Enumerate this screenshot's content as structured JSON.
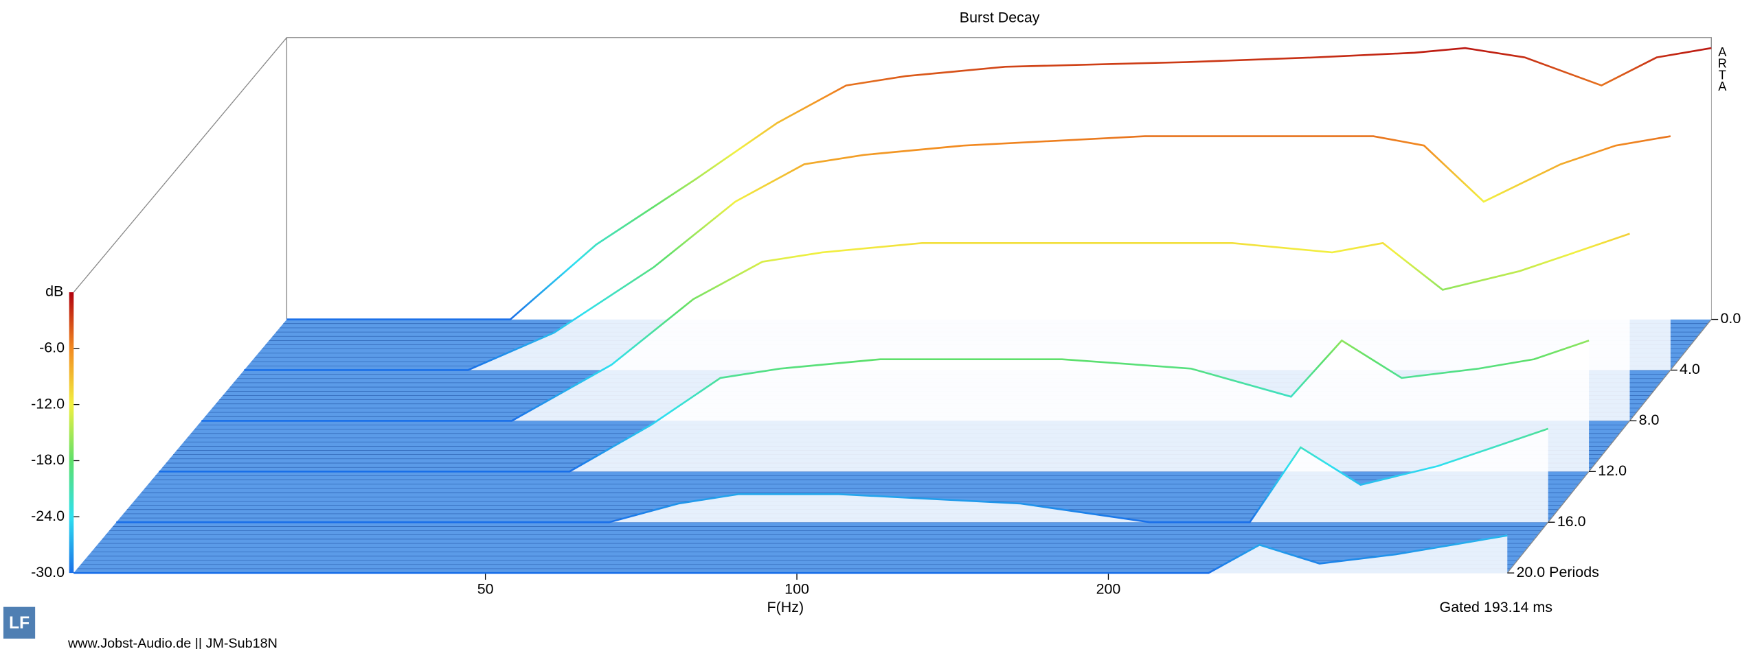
{
  "chart_data": {
    "type": "waterfall",
    "title": "Burst Decay",
    "ylabel": "dB",
    "ylim": [
      -30,
      0
    ],
    "yticks": [
      {
        "value": -30,
        "label": "-30.0"
      },
      {
        "value": -24,
        "label": "-24.0"
      },
      {
        "value": -18,
        "label": "-18.0"
      },
      {
        "value": -12,
        "label": "-12.0"
      },
      {
        "value": -6,
        "label": "-6.0"
      }
    ],
    "xlabel": "F(Hz)",
    "xscale": "log",
    "xlim": [
      20,
      486
    ],
    "xticks": [
      50,
      100,
      200
    ],
    "zlim": [
      0,
      20
    ],
    "zticks": [
      {
        "value": 0,
        "label": "0.0"
      },
      {
        "value": 4,
        "label": "4.0"
      },
      {
        "value": 8,
        "label": "8.0"
      },
      {
        "value": 12,
        "label": "12.0"
      },
      {
        "value": 16,
        "label": "16.0"
      },
      {
        "value": 20,
        "label": "20.0 Periods"
      }
    ],
    "x": [
      20,
      33,
      40,
      50,
      60,
      70,
      80,
      100,
      150,
      200,
      250,
      280,
      320,
      380,
      430,
      486
    ],
    "series": [
      {
        "period": 0,
        "values": [
          -30,
          -30,
          -22,
          -15,
          -9,
          -5,
          -4,
          -3,
          -2.5,
          -2,
          -1.5,
          -1,
          -2,
          -5,
          -2,
          -1
        ]
      },
      {
        "period": 4,
        "values": [
          -30,
          -30,
          -26,
          -19,
          -12,
          -8,
          -7,
          -6,
          -5,
          -5,
          -5,
          -6,
          -12,
          -8,
          -6,
          -5
        ]
      },
      {
        "period": 8,
        "values": [
          -30,
          -30,
          -30,
          -24,
          -17,
          -13,
          -12,
          -11,
          -11,
          -11,
          -12,
          -11,
          -16,
          -14,
          -12,
          -10
        ]
      },
      {
        "period": 12,
        "values": [
          -30,
          -30,
          -30,
          -30,
          -25,
          -20,
          -19,
          -18,
          -18,
          -19,
          -22,
          -16,
          -20,
          -19,
          -18,
          -16
        ]
      },
      {
        "period": 16,
        "values": [
          -30,
          -30,
          -30,
          -30,
          -30,
          -28,
          -27,
          -27,
          -28,
          -30,
          -30,
          -22,
          -26,
          -24,
          -22,
          -20
        ]
      },
      {
        "period": 20,
        "values": [
          -30,
          -30,
          -30,
          -30,
          -30,
          -30,
          -30,
          -30,
          -30,
          -30,
          -30,
          -27,
          -29,
          -28,
          -27,
          -26
        ]
      }
    ],
    "colorscale": [
      "#1a6fe8",
      "#2ee0f0",
      "#5ee06a",
      "#f2f040",
      "#f28a20",
      "#b0000e"
    ],
    "floor_color": "#5b9be8",
    "annotation": "Gated 193.14 ms",
    "watermark": "ARTA",
    "logo": "LF",
    "footer": "www.Jobst-Audio.de  ||  JM-Sub18N"
  }
}
